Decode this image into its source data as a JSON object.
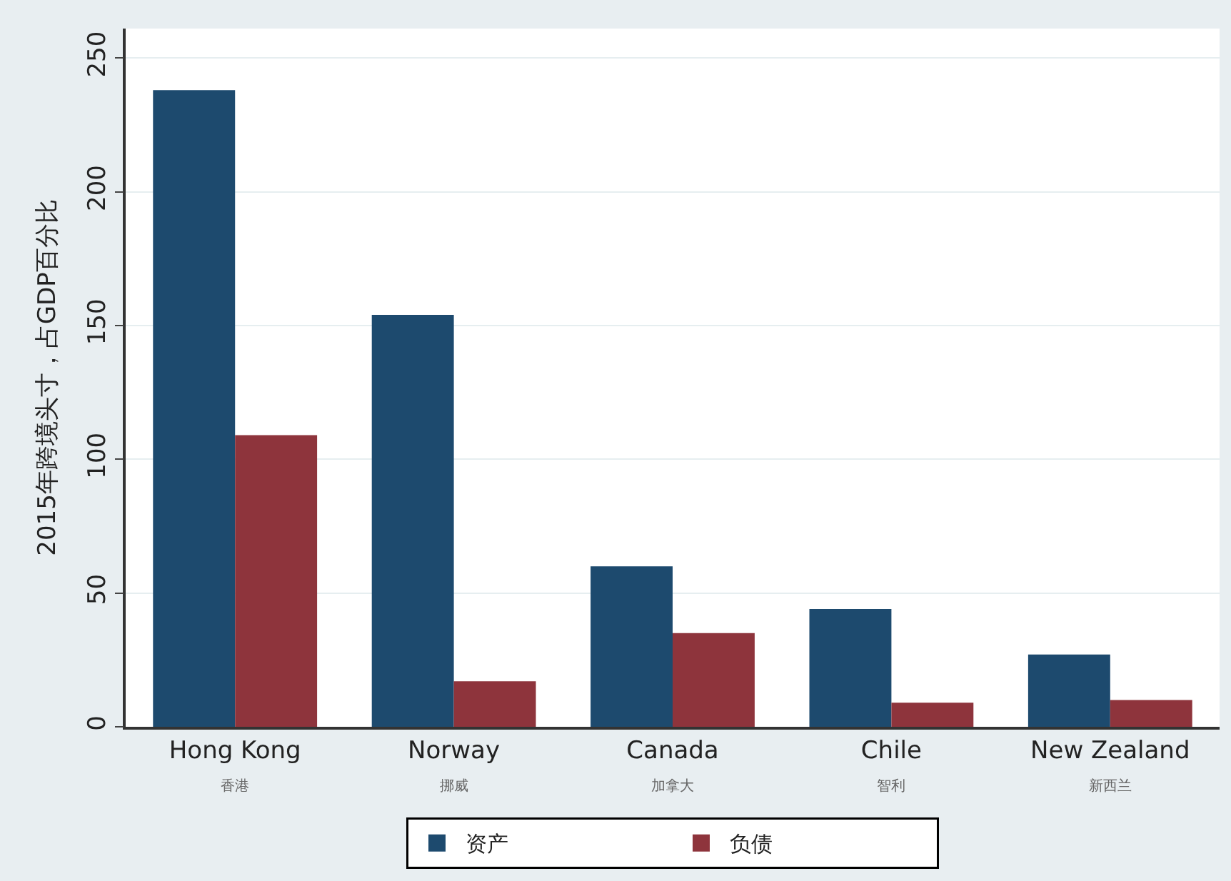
{
  "chart_data": {
    "type": "bar",
    "ylabel": "2015年跨境头寸，占GDP百分比",
    "categories": [
      "Hong Kong\n香港",
      "Norway\n挪威",
      "Canada\n加拿大",
      "Chile\n智利",
      "New Zealand\n新西兰"
    ],
    "series": [
      {
        "name": "资产",
        "color": "#1d4a6e",
        "values": [
          238,
          154,
          60,
          44,
          27
        ]
      },
      {
        "name": "负债",
        "color": "#8e343c",
        "values": [
          109,
          17,
          35,
          9,
          10
        ]
      }
    ],
    "ylim": [
      0,
      261
    ],
    "yticks": [
      0,
      50,
      100,
      150,
      200,
      250
    ],
    "grid": "y",
    "legend": "bottom"
  }
}
